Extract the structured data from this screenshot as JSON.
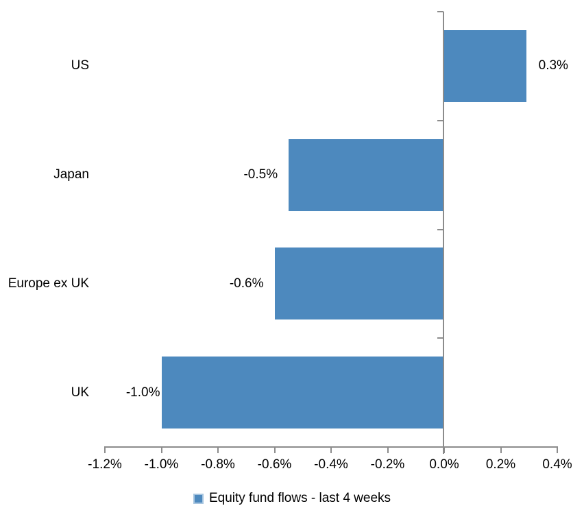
{
  "chart_data": {
    "type": "bar",
    "orientation": "horizontal",
    "title": "",
    "categories": [
      "US",
      "Japan",
      "Europe ex UK",
      "UK"
    ],
    "values": [
      0.3,
      -0.5,
      -0.6,
      -1.0
    ],
    "bar_values_precise_pct": [
      0.29,
      -0.55,
      -0.6,
      -1.0
    ],
    "data_labels": [
      "0.3%",
      "-0.5%",
      "-0.6%",
      "-1.0%"
    ],
    "x_tick_values": [
      -1.2,
      -1.0,
      -0.8,
      -0.6,
      -0.4,
      -0.2,
      0.0,
      0.2,
      0.4
    ],
    "x_tick_labels": [
      "-1.2%",
      "-1.0%",
      "-0.8%",
      "-0.6%",
      "-0.4%",
      "-0.2%",
      "0.0%",
      "0.2%",
      "0.4%"
    ],
    "xlim": [
      -1.2,
      0.4
    ],
    "grid": false,
    "legend": {
      "label": "Equity fund flows - last 4 weeks",
      "position": "bottom-center",
      "marker": "square"
    },
    "colors": {
      "bar": "#4D89BE",
      "legend_marker_border": "#A9C6E0",
      "axis_line": "#8C8C8C",
      "text": "#000000"
    }
  }
}
